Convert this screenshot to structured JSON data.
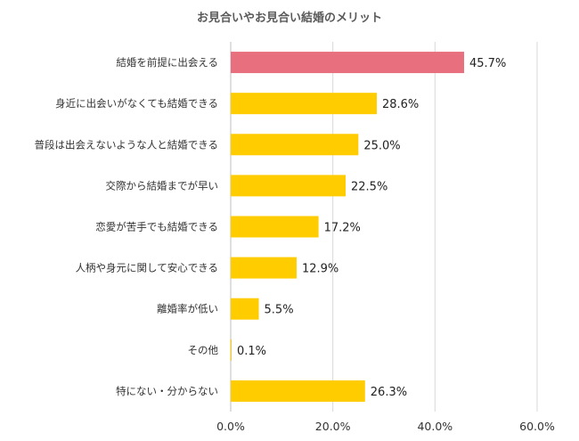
{
  "chart_data": {
    "type": "bar",
    "orientation": "horizontal",
    "title": "お見合いやお見合い結婚のメリット",
    "categories": [
      "結婚を前提に出会える",
      "身近に出会いがなくても結婚できる",
      "普段は出会えないような人と結婚できる",
      "交際から結婚までが早い",
      "恋愛が苦手でも結婚できる",
      "人柄や身元に関して安心できる",
      "離婚率が低い",
      "その他",
      "特にない・分からない"
    ],
    "values": [
      45.7,
      28.6,
      25.0,
      22.5,
      17.2,
      12.9,
      5.5,
      0.1,
      26.3
    ],
    "value_labels": [
      "45.7%",
      "28.6%",
      "25.0%",
      "22.5%",
      "17.2%",
      "12.9%",
      "5.5%",
      "0.1%",
      "26.3%"
    ],
    "xlim": [
      0,
      60
    ],
    "xticks": [
      0,
      20,
      40,
      60
    ],
    "xtick_labels": [
      "0.0%",
      "20.0%",
      "40.0%",
      "60.0%"
    ],
    "grid": "vertical",
    "colors": {
      "highlight": "#e8707e",
      "default": "#ffcc00",
      "grid": "#d9d9d9"
    },
    "highlight_index": 0
  }
}
